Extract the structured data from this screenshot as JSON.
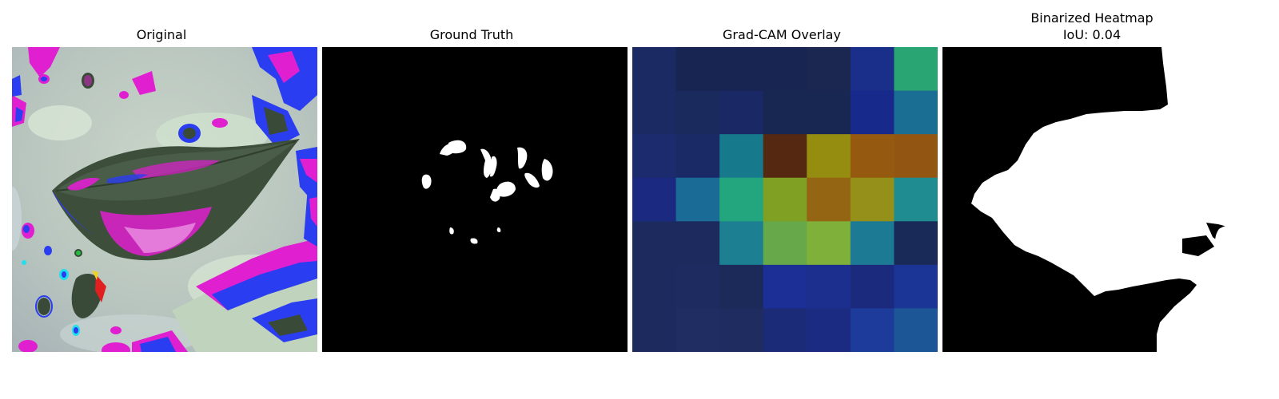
{
  "panels": [
    {
      "title": "Original"
    },
    {
      "title": "Ground Truth"
    },
    {
      "title": "Grad-CAM Overlay"
    },
    {
      "title": "Binarized Heatmap",
      "subtitle": "IoU: 0.04"
    }
  ],
  "gradcam_grid": {
    "rows": 7,
    "cols": 7,
    "colors": [
      [
        "#1c2a63",
        "#182552",
        "#182552",
        "#182552",
        "#1b2651",
        "#1a2f8a",
        "#28a572"
      ],
      [
        "#1b2a62",
        "#1b2a5c",
        "#1a2866",
        "#182752",
        "#182752",
        "#172a8c",
        "#1a6e94"
      ],
      [
        "#1b2b6d",
        "#192a67",
        "#167a8c",
        "#552811",
        "#958d10",
        "#955a10",
        "#925612"
      ],
      [
        "#1b2a80",
        "#1a6b95",
        "#23a67e",
        "#80a023",
        "#946513",
        "#95901a",
        "#1e8c90"
      ],
      [
        "#1c2a5e",
        "#1c2a5e",
        "#1c8092",
        "#66a84a",
        "#7fb03a",
        "#1c7a95",
        "#1a2a58"
      ],
      [
        "#1c2a5e",
        "#1e2b60",
        "#1c2a5a",
        "#1c2f96",
        "#1c2f8f",
        "#1c2a7d",
        "#1b3596"
      ],
      [
        "#1c2a5e",
        "#1f2d62",
        "#1e2c60",
        "#1c2b78",
        "#1c2b82",
        "#1c3b9a",
        "#1c5696"
      ]
    ]
  }
}
